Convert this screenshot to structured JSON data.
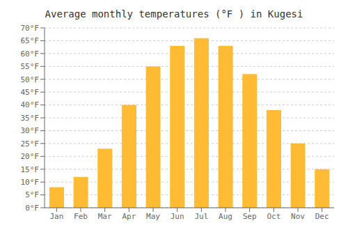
{
  "chart_data": {
    "type": "bar",
    "title": "Average monthly temperatures (°F ) in Kugesi",
    "categories": [
      "Jan",
      "Feb",
      "Mar",
      "Apr",
      "May",
      "Jun",
      "Jul",
      "Aug",
      "Sep",
      "Oct",
      "Nov",
      "Dec"
    ],
    "values": [
      8,
      12,
      23,
      40,
      55,
      63,
      66,
      63,
      52,
      38,
      25,
      15
    ],
    "color": "#FFBB33",
    "ylim": [
      0,
      70
    ],
    "yticks": [
      {
        "value": 0,
        "label": "0°F"
      },
      {
        "value": 5,
        "label": "5°F"
      },
      {
        "value": 10,
        "label": "10°F"
      },
      {
        "value": 15,
        "label": "15°F"
      },
      {
        "value": 20,
        "label": "20°F"
      },
      {
        "value": 25,
        "label": "25°F"
      },
      {
        "value": 30,
        "label": "30°F"
      },
      {
        "value": 35,
        "label": "35°F"
      },
      {
        "value": 40,
        "label": "40°F"
      },
      {
        "value": 45,
        "label": "45°F"
      },
      {
        "value": 50,
        "label": "50°F"
      },
      {
        "value": 55,
        "label": "55°F"
      },
      {
        "value": 60,
        "label": "60°F"
      },
      {
        "value": 65,
        "label": "65°F"
      },
      {
        "value": 70,
        "label": "70°F"
      }
    ],
    "grid": true
  }
}
